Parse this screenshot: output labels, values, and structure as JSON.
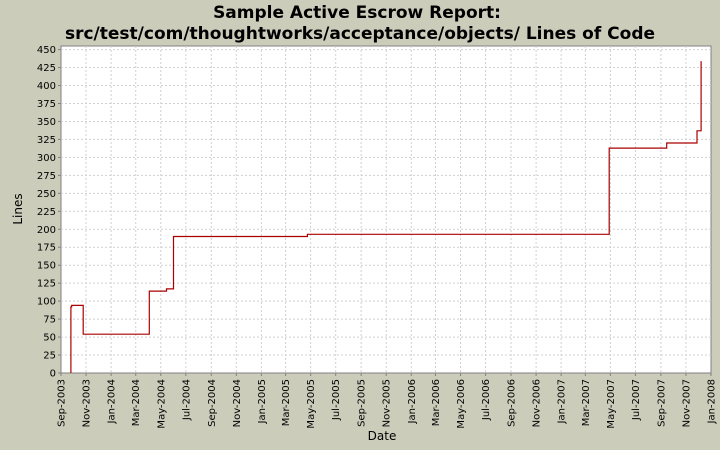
{
  "chart_data": {
    "type": "line",
    "title": "Sample Active Escrow Report:",
    "subtitle": "src/test/com/thoughtworks/acceptance/objects/ Lines of Code",
    "xlabel": "Date",
    "ylabel": "Lines",
    "ylim": [
      0,
      455
    ],
    "yticks": [
      0,
      25,
      50,
      75,
      100,
      125,
      150,
      175,
      200,
      225,
      250,
      275,
      300,
      325,
      350,
      375,
      400,
      425,
      450
    ],
    "xlim": [
      "2003-09-01",
      "2008-01-01"
    ],
    "xticks": [
      "Sep-2003",
      "Nov-2003",
      "Jan-2004",
      "Mar-2004",
      "May-2004",
      "Jul-2004",
      "Sep-2004",
      "Nov-2004",
      "Jan-2005",
      "Mar-2005",
      "May-2005",
      "Jul-2005",
      "Sep-2005",
      "Nov-2005",
      "Jan-2006",
      "Mar-2006",
      "May-2006",
      "Jul-2006",
      "Sep-2006",
      "Nov-2006",
      "Jan-2007",
      "Mar-2007",
      "May-2007",
      "Jul-2007",
      "Sep-2007",
      "Nov-2007",
      "Jan-2008"
    ],
    "grid": true,
    "series_color": "#aa0000",
    "series": [
      {
        "x": [
          "2003-09-25",
          "2003-09-25",
          "2003-09-27",
          "2003-09-27",
          "2003-10-25",
          "2003-10-25",
          "2004-04-03",
          "2004-04-03",
          "2004-05-15",
          "2004-05-15",
          "2004-06-01",
          "2004-06-01",
          "2005-04-23",
          "2005-04-23",
          "2007-04-28",
          "2007-04-28",
          "2007-09-15",
          "2007-09-15",
          "2007-11-28",
          "2007-11-28",
          "2007-12-08",
          "2007-12-08"
        ],
        "values": [
          0,
          92,
          92,
          94,
          94,
          54,
          54,
          114,
          114,
          117,
          117,
          190,
          190,
          193,
          193,
          313,
          313,
          320,
          320,
          337,
          337,
          434
        ]
      }
    ]
  },
  "colors": {
    "background": "#ccccbb",
    "plot_background": "#ffffff",
    "grid": "#d0d0d0",
    "series": "#aa0000"
  }
}
